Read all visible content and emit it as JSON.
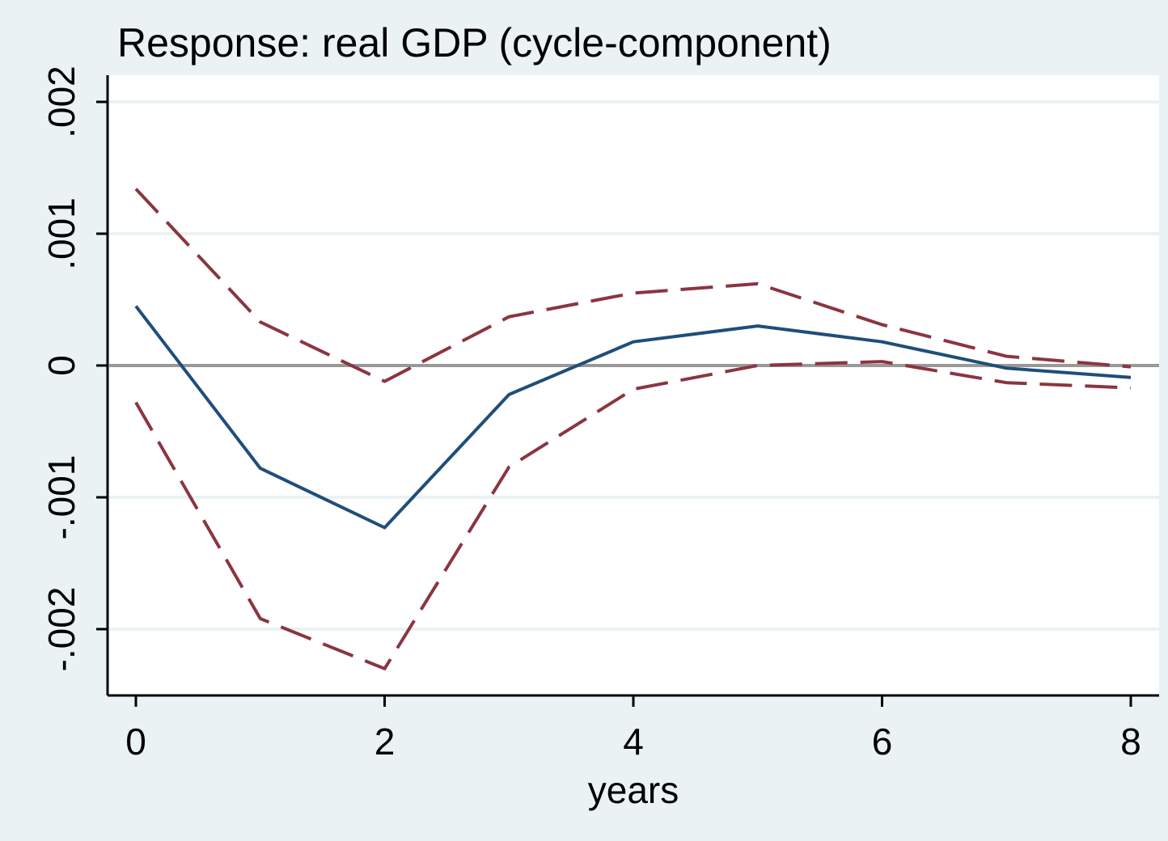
{
  "chart_data": {
    "type": "line",
    "title": "Response: real GDP (cycle-component)",
    "xlabel": "years",
    "ylabel": "",
    "xlim": [
      0,
      8
    ],
    "ylim": [
      -0.0024,
      0.0022
    ],
    "x": [
      0,
      1,
      2,
      3,
      4,
      5,
      6,
      7,
      8
    ],
    "x_ticks": [
      0,
      2,
      4,
      6,
      8
    ],
    "x_tick_labels": [
      "0",
      "2",
      "4",
      "6",
      "8"
    ],
    "y_ticks": [
      0.002,
      0.001,
      0,
      -0.001,
      -0.002
    ],
    "y_tick_labels": [
      ".002",
      ".001",
      "0",
      "-.001",
      "-.002"
    ],
    "grid": true,
    "zero_line": true,
    "legend": "none",
    "series": [
      {
        "role": "response",
        "style": "solid",
        "color": "#1f4e79",
        "values": [
          0.00045,
          -0.00078,
          -0.00123,
          -0.00022,
          0.00018,
          0.0003,
          0.00018,
          -2e-05,
          -9e-05
        ]
      },
      {
        "role": "upper-band",
        "style": "dashed",
        "color": "#8b3540",
        "values": [
          0.00134,
          0.00033,
          -0.00012,
          0.00037,
          0.00055,
          0.00062,
          0.00031,
          7e-05,
          -1e-05
        ]
      },
      {
        "role": "lower-band",
        "style": "dashed",
        "color": "#8b3540",
        "values": [
          -0.00028,
          -0.00192,
          -0.0023,
          -0.00077,
          -0.00018,
          0.0,
          3e-05,
          -0.00013,
          -0.00017
        ]
      }
    ],
    "colors": {
      "background": "#eaf2f3",
      "plot_background": "#ffffff",
      "gridline": "#eaf2f3",
      "zero_line": "#999999",
      "axis": "#000000"
    }
  }
}
